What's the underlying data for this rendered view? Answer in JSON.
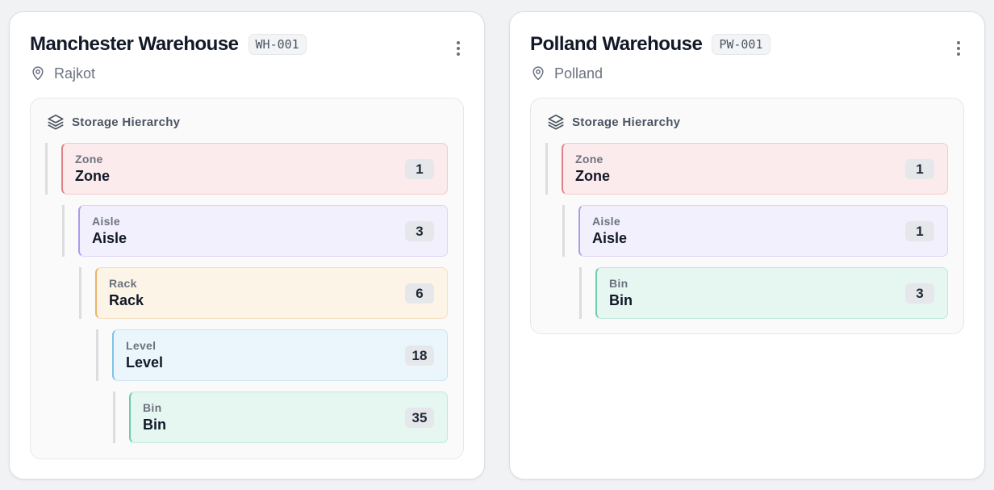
{
  "warehouses": [
    {
      "name": "Manchester Warehouse",
      "code": "WH-001",
      "location": "Rajkot",
      "hierarchy_title": "Storage Hierarchy",
      "levels": [
        {
          "label": "Zone",
          "name": "Zone",
          "count": "1"
        },
        {
          "label": "Aisle",
          "name": "Aisle",
          "count": "3"
        },
        {
          "label": "Rack",
          "name": "Rack",
          "count": "6"
        },
        {
          "label": "Level",
          "name": "Level",
          "count": "18"
        },
        {
          "label": "Bin",
          "name": "Bin",
          "count": "35"
        }
      ]
    },
    {
      "name": "Polland Warehouse",
      "code": "PW-001",
      "location": "Polland",
      "hierarchy_title": "Storage Hierarchy",
      "levels": [
        {
          "label": "Zone",
          "name": "Zone",
          "count": "1"
        },
        {
          "label": "Aisle",
          "name": "Aisle",
          "count": "1"
        },
        {
          "label": "Bin",
          "name": "Bin",
          "count": "3"
        }
      ]
    }
  ],
  "icons": {
    "menu": "more-vertical-icon",
    "location": "map-pin-icon",
    "hierarchy": "layers-icon"
  },
  "colors": {
    "zone": "#fcebec",
    "aisle": "#f3f0fd",
    "rack": "#fdf4e8",
    "level": "#eaf5fc",
    "bin": "#e6f6f1"
  }
}
